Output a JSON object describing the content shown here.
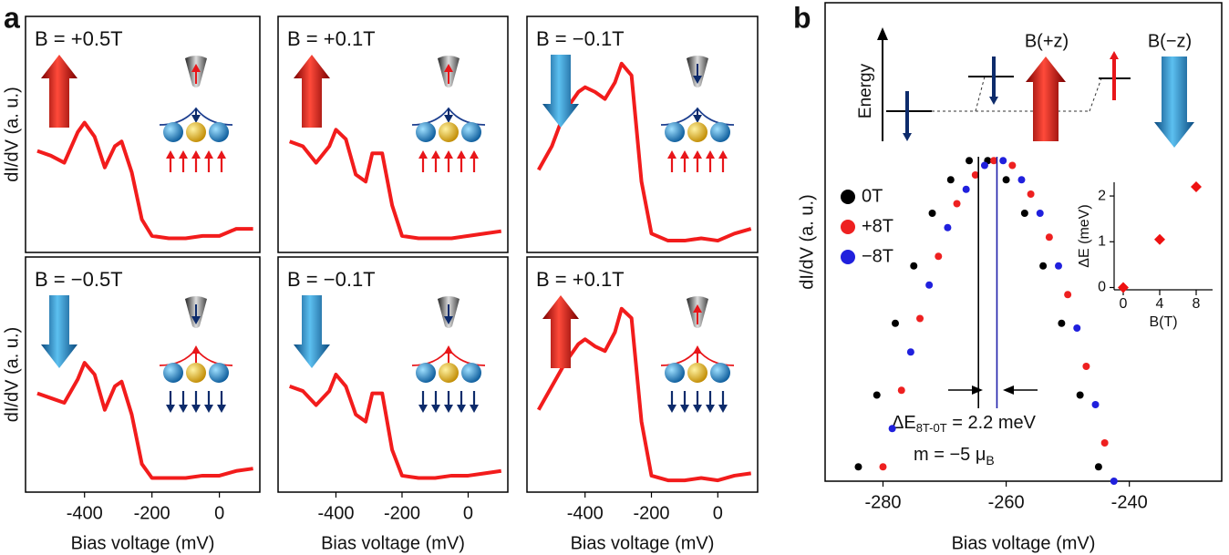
{
  "panel_labels": [
    "a",
    "b"
  ],
  "diagram": {
    "ylabel": "Energy",
    "labels": [
      "B(+z)",
      "B(−z)"
    ]
  },
  "chart_data": [
    {
      "type": "line",
      "title": "B = +0.5T",
      "ylabel": "dI/dV (a. u.)",
      "color": "#f21c1c",
      "xlim": [
        -575,
        120
      ],
      "ylim": [
        0,
        1
      ],
      "x": [
        -540,
        -500,
        -460,
        -420,
        -400,
        -370,
        -340,
        -310,
        -290,
        -260,
        -230,
        -200,
        -150,
        -100,
        -50,
        0,
        50,
        100
      ],
      "values": [
        0.43,
        0.41,
        0.38,
        0.51,
        0.55,
        0.49,
        0.36,
        0.45,
        0.47,
        0.34,
        0.14,
        0.07,
        0.06,
        0.06,
        0.07,
        0.07,
        0.1,
        0.1
      ]
    },
    {
      "type": "line",
      "title": "B = +0.1T",
      "color": "#f21c1c",
      "xlim": [
        -575,
        120
      ],
      "ylim": [
        0,
        1
      ],
      "x": [
        -540,
        -500,
        -460,
        -420,
        -400,
        -370,
        -340,
        -310,
        -290,
        -260,
        -230,
        -200,
        -150,
        -100,
        -50,
        0,
        50,
        100
      ],
      "values": [
        0.47,
        0.45,
        0.38,
        0.45,
        0.52,
        0.48,
        0.33,
        0.3,
        0.42,
        0.42,
        0.2,
        0.07,
        0.06,
        0.06,
        0.06,
        0.07,
        0.08,
        0.09
      ]
    },
    {
      "type": "line",
      "title": "B = −0.1T",
      "color": "#f21c1c",
      "xlim": [
        -575,
        120
      ],
      "ylim": [
        0,
        1
      ],
      "x": [
        -540,
        -500,
        -460,
        -420,
        -400,
        -370,
        -340,
        -310,
        -290,
        -260,
        -230,
        -200,
        -150,
        -100,
        -50,
        0,
        50,
        100
      ],
      "values": [
        0.35,
        0.45,
        0.6,
        0.68,
        0.7,
        0.68,
        0.65,
        0.72,
        0.8,
        0.75,
        0.3,
        0.08,
        0.05,
        0.05,
        0.06,
        0.05,
        0.08,
        0.1
      ]
    },
    {
      "type": "line",
      "title": "B = −0.5T",
      "ylabel": "dI/dV (a. u.)",
      "xlabel": "Bias voltage (mV)",
      "color": "#f21c1c",
      "xlim": [
        -575,
        120
      ],
      "ylim": [
        0,
        1
      ],
      "xticks": [
        -400,
        -200,
        0
      ],
      "x": [
        -540,
        -500,
        -460,
        -420,
        -400,
        -370,
        -340,
        -310,
        -290,
        -260,
        -230,
        -200,
        -150,
        -100,
        -50,
        0,
        50,
        100
      ],
      "values": [
        0.42,
        0.4,
        0.38,
        0.48,
        0.55,
        0.5,
        0.35,
        0.45,
        0.47,
        0.33,
        0.12,
        0.06,
        0.06,
        0.06,
        0.07,
        0.07,
        0.09,
        0.1
      ]
    },
    {
      "type": "line",
      "title": "B = −0.1T",
      "xlabel": "Bias voltage (mV)",
      "color": "#f21c1c",
      "xlim": [
        -575,
        120
      ],
      "ylim": [
        0,
        1
      ],
      "xticks": [
        -400,
        -200,
        0
      ],
      "x": [
        -540,
        -500,
        -460,
        -420,
        -400,
        -370,
        -340,
        -310,
        -290,
        -260,
        -230,
        -200,
        -150,
        -100,
        -50,
        0,
        50,
        100
      ],
      "values": [
        0.45,
        0.43,
        0.37,
        0.43,
        0.5,
        0.45,
        0.33,
        0.3,
        0.42,
        0.42,
        0.18,
        0.07,
        0.06,
        0.06,
        0.07,
        0.07,
        0.08,
        0.09
      ]
    },
    {
      "type": "line",
      "title": "B = +0.1T",
      "xlabel": "Bias voltage (mV)",
      "color": "#f21c1c",
      "xlim": [
        -575,
        120
      ],
      "ylim": [
        0,
        1
      ],
      "xticks": [
        -400,
        -200,
        0
      ],
      "x": [
        -540,
        -500,
        -460,
        -420,
        -400,
        -370,
        -340,
        -310,
        -290,
        -260,
        -230,
        -200,
        -150,
        -100,
        -50,
        0,
        50,
        100
      ],
      "values": [
        0.35,
        0.45,
        0.55,
        0.63,
        0.65,
        0.62,
        0.6,
        0.68,
        0.78,
        0.74,
        0.3,
        0.07,
        0.05,
        0.05,
        0.06,
        0.05,
        0.07,
        0.08
      ]
    },
    {
      "type": "scatter",
      "ylabel": "dI/dV (a. u.)",
      "xlabel": "Bias voltage (mV)",
      "xlim": [
        -289.4,
        -225
      ],
      "ylim": [
        0,
        1
      ],
      "xticks": [
        -280,
        -260,
        -240
      ],
      "legend": "upper left",
      "series": [
        {
          "name": "0T",
          "color": "#000000",
          "x": [
            -284,
            -281,
            -278,
            -275,
            -272,
            -269,
            -266,
            -263,
            -260,
            -257,
            -254,
            -251,
            -248,
            -245
          ],
          "values": [
            0.03,
            0.18,
            0.33,
            0.45,
            0.56,
            0.63,
            0.67,
            0.67,
            0.63,
            0.56,
            0.45,
            0.33,
            0.18,
            0.03
          ]
        },
        {
          "name": "+8T",
          "color": "#ee2020",
          "x": [
            -280,
            -277,
            -274,
            -271,
            -268,
            -265,
            -262,
            -259,
            -256,
            -253,
            -250,
            -247,
            -244
          ],
          "values": [
            0.03,
            0.19,
            0.34,
            0.47,
            0.58,
            0.64,
            0.67,
            0.66,
            0.6,
            0.51,
            0.39,
            0.24,
            0.08
          ]
        },
        {
          "name": "−8T",
          "color": "#2020dd",
          "x": [
            -278.5,
            -275.5,
            -272.5,
            -269.5,
            -266.5,
            -263.5,
            -260.5,
            -257.5,
            -254.5,
            -251.5,
            -248.5,
            -245.5,
            -242.5
          ],
          "values": [
            0.11,
            0.27,
            0.41,
            0.53,
            0.61,
            0.66,
            0.67,
            0.63,
            0.56,
            0.45,
            0.32,
            0.16,
            0.0
          ]
        }
      ],
      "vlines": [
        {
          "x": -264.5,
          "color": "#000000"
        },
        {
          "x": -261.5,
          "color": "#2020aa"
        }
      ],
      "annotations": [
        "ΔE",
        "8T-0T",
        " = 2.2 meV",
        "m = −5 μ",
        "B"
      ]
    },
    {
      "type": "scatter",
      "marker": "diamond",
      "ylabel": "ΔE (meV)",
      "xlabel": "B(T)",
      "xlim": [
        -1,
        9.8
      ],
      "ylim": [
        -0.05,
        2.3
      ],
      "xticks": [
        0,
        4,
        8
      ],
      "yticks": [
        0,
        1,
        2
      ],
      "series": [
        {
          "color": "#ee1111",
          "x": [
            0,
            4,
            8
          ],
          "values": [
            0,
            1.05,
            2.2
          ]
        }
      ]
    }
  ]
}
